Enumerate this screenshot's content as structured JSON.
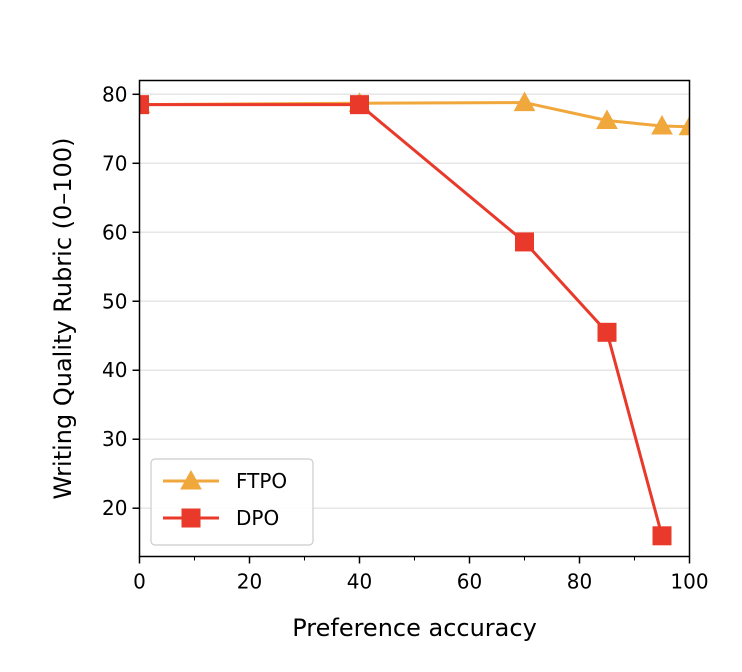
{
  "chart_data": {
    "type": "line",
    "title": "",
    "xlabel": "Preference accuracy",
    "ylabel": "Writing Quality Rubric (0–100)",
    "xlim": [
      0,
      100
    ],
    "ylim": [
      13,
      82
    ],
    "xticks": [
      0,
      20,
      40,
      60,
      80,
      100
    ],
    "xtick_labels": [
      "0",
      "20",
      "40",
      "60",
      "80",
      "100"
    ],
    "yticks": [
      20,
      30,
      40,
      50,
      60,
      70,
      80
    ],
    "ytick_labels": [
      "20",
      "30",
      "40",
      "50",
      "60",
      "70",
      "80"
    ],
    "grid": "horizontal",
    "legend_position": "lower-left",
    "series": [
      {
        "name": "FTPO",
        "color": "#f0a73c",
        "marker": "triangle",
        "x": [
          0,
          40,
          70,
          85,
          95,
          100
        ],
        "y": [
          78.5,
          78.7,
          78.8,
          76.2,
          75.4,
          75.3
        ]
      },
      {
        "name": "DPO",
        "color": "#e8392a",
        "marker": "square",
        "x": [
          0,
          40,
          70,
          85,
          95
        ],
        "y": [
          78.5,
          78.5,
          58.6,
          45.5,
          16.0
        ]
      }
    ]
  }
}
